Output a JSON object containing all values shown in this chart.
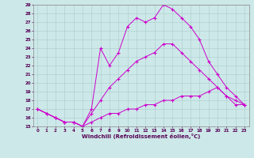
{
  "xlabel": "Windchill (Refroidissement éolien,°C)",
  "xlim": [
    -0.5,
    23.5
  ],
  "ylim": [
    15,
    29
  ],
  "xticks": [
    0,
    1,
    2,
    3,
    4,
    5,
    6,
    7,
    8,
    9,
    10,
    11,
    12,
    13,
    14,
    15,
    16,
    17,
    18,
    19,
    20,
    21,
    22,
    23
  ],
  "yticks": [
    15,
    16,
    17,
    18,
    19,
    20,
    21,
    22,
    23,
    24,
    25,
    26,
    27,
    28,
    29
  ],
  "bg_color": "#cde8e8",
  "line_color": "#cc00cc",
  "grid_color": "#aacccc",
  "lines": [
    {
      "x": [
        0,
        1,
        2,
        3,
        4,
        5,
        6,
        7,
        8,
        9,
        10,
        11,
        12,
        13,
        14,
        15,
        16,
        17,
        18,
        19,
        20,
        21,
        22,
        23
      ],
      "y": [
        17.0,
        16.5,
        16.0,
        15.5,
        15.5,
        15.0,
        15.5,
        16.0,
        16.5,
        16.5,
        17.0,
        17.0,
        17.5,
        17.5,
        18.0,
        18.0,
        18.5,
        18.5,
        18.5,
        19.0,
        19.5,
        18.5,
        17.5,
        17.5
      ]
    },
    {
      "x": [
        0,
        1,
        2,
        3,
        4,
        5,
        6,
        7,
        8,
        9,
        10,
        11,
        12,
        13,
        14,
        15,
        16,
        17,
        18,
        19,
        20,
        21,
        22,
        23
      ],
      "y": [
        17.0,
        16.5,
        16.0,
        15.5,
        15.5,
        15.0,
        16.5,
        18.0,
        19.5,
        20.5,
        21.5,
        22.5,
        23.0,
        23.5,
        24.5,
        24.5,
        23.5,
        22.5,
        21.5,
        20.5,
        19.5,
        18.5,
        18.0,
        17.5
      ]
    },
    {
      "x": [
        0,
        1,
        2,
        3,
        4,
        5,
        6,
        7,
        8,
        9,
        10,
        11,
        12,
        13,
        14,
        15,
        16,
        17,
        18,
        19,
        20,
        21,
        22,
        23
      ],
      "y": [
        17.0,
        16.5,
        16.0,
        15.5,
        15.5,
        15.0,
        17.0,
        24.0,
        22.0,
        23.5,
        26.5,
        27.5,
        27.0,
        27.5,
        29.0,
        28.5,
        27.5,
        26.5,
        25.0,
        22.5,
        21.0,
        19.5,
        18.5,
        17.5
      ]
    }
  ]
}
